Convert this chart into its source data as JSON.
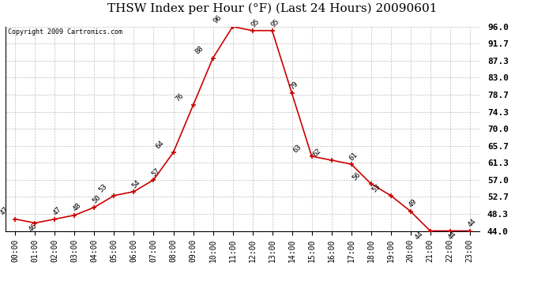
{
  "title": "THSW Index per Hour (°F) (Last 24 Hours) 20090601",
  "copyright": "Copyright 2009 Cartronics.com",
  "hours": [
    0,
    1,
    2,
    3,
    4,
    5,
    6,
    7,
    8,
    9,
    10,
    11,
    12,
    13,
    14,
    15,
    16,
    17,
    18,
    19,
    20,
    21,
    22,
    23
  ],
  "hour_labels": [
    "00:00",
    "01:00",
    "02:00",
    "03:00",
    "04:00",
    "05:00",
    "06:00",
    "07:00",
    "08:00",
    "09:00",
    "10:00",
    "11:00",
    "12:00",
    "13:00",
    "14:00",
    "15:00",
    "16:00",
    "17:00",
    "18:00",
    "19:00",
    "20:00",
    "21:00",
    "22:00",
    "23:00"
  ],
  "values": [
    47,
    46,
    47,
    48,
    50,
    53,
    54,
    57,
    64,
    76,
    88,
    96,
    95,
    95,
    79,
    63,
    62,
    61,
    56,
    53,
    49,
    44,
    44,
    44
  ],
  "labels": [
    "47",
    "46",
    "47",
    "48",
    "50",
    "53",
    "54",
    "57",
    "64",
    "76",
    "88",
    "96",
    "95",
    "95",
    "79",
    "63",
    "62",
    "61",
    "56",
    "53",
    "49",
    "44",
    "44",
    "44"
  ],
  "ylim": [
    44.0,
    96.0
  ],
  "yticks": [
    44.0,
    48.3,
    52.7,
    57.0,
    61.3,
    65.7,
    70.0,
    74.3,
    78.7,
    83.0,
    87.3,
    91.7,
    96.0
  ],
  "line_color": "#cc0000",
  "bg_color": "#ffffff",
  "grid_color": "#c0c0c0",
  "title_fontsize": 11,
  "annot_fontsize": 6.5,
  "tick_fontsize": 7,
  "ytick_fontsize": 8
}
